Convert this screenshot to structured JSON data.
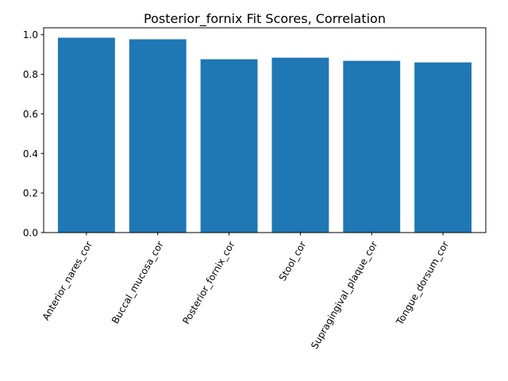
{
  "chart_data": {
    "type": "bar",
    "title": "Posterior_fornix Fit Scores, Correlation",
    "xlabel": "",
    "ylabel": "",
    "categories": [
      "Anterior_nares_cor",
      "Buccal_mucosa_cor",
      "Posterior_fornix_cor",
      "Stool_cor",
      "Supragingival_plaque_cor",
      "Tongue_dorsum_cor"
    ],
    "values": [
      0.985,
      0.977,
      0.876,
      0.884,
      0.868,
      0.86
    ],
    "ylim": [
      0,
      1.035
    ],
    "yticks": [
      0.0,
      0.2,
      0.4,
      0.6,
      0.8,
      1.0
    ],
    "ytick_labels": [
      "0.0",
      "0.2",
      "0.4",
      "0.6",
      "0.8",
      "1.0"
    ],
    "grid": false,
    "legend": "none",
    "bar_color": "#1f77b4"
  }
}
